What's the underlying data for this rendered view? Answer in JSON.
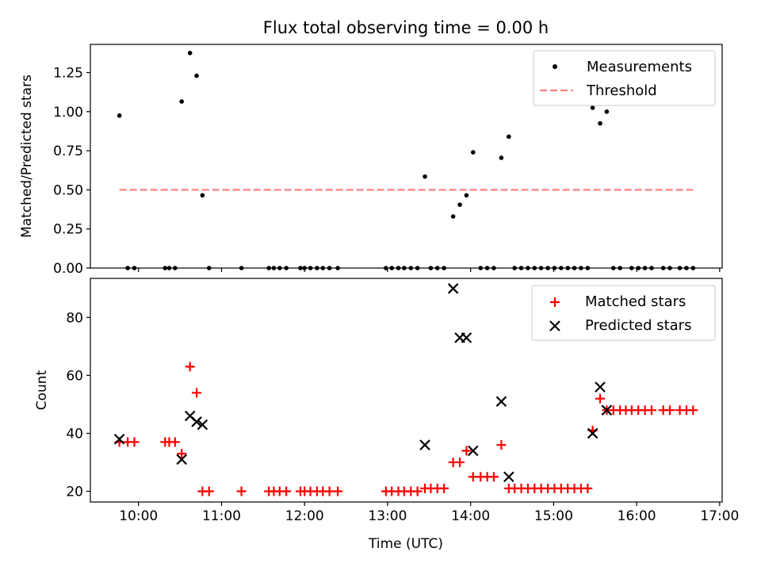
{
  "chart_data": [
    {
      "type": "scatter",
      "title": "Flux total observing time = 0.00 h",
      "xlabel": "",
      "ylabel": "Matched/Predicted stars",
      "xlim": [
        9.42,
        17.03
      ],
      "ylim": [
        0,
        1.43
      ],
      "yticks": [
        0.0,
        0.25,
        0.5,
        0.75,
        1.0,
        1.25
      ],
      "ytick_labels": [
        "0.00",
        "0.25",
        "0.50",
        "0.75",
        "1.00",
        "1.25"
      ],
      "xticks": [
        10,
        11,
        12,
        13,
        14,
        15,
        16,
        17
      ],
      "legend_position": "top-right",
      "series": [
        {
          "name": "Measurements",
          "marker": "dot",
          "color": "#000000",
          "points": [
            [
              9.77,
              0.975
            ],
            [
              10.52,
              1.065
            ],
            [
              10.62,
              1.375
            ],
            [
              10.7,
              1.23
            ],
            [
              10.77,
              0.465
            ],
            [
              13.45,
              0.585
            ],
            [
              13.79,
              0.33
            ],
            [
              13.87,
              0.405
            ],
            [
              13.95,
              0.465
            ],
            [
              14.03,
              0.74
            ],
            [
              14.37,
              0.705
            ],
            [
              14.46,
              0.84
            ],
            [
              15.47,
              1.025
            ],
            [
              15.56,
              0.925
            ],
            [
              15.64,
              1.0
            ],
            [
              9.87,
              0.0
            ],
            [
              9.95,
              0.0
            ],
            [
              10.32,
              0.0
            ],
            [
              10.37,
              0.0
            ],
            [
              10.44,
              0.0
            ],
            [
              10.85,
              0.0
            ],
            [
              11.24,
              0.0
            ],
            [
              11.57,
              0.0
            ],
            [
              11.63,
              0.0
            ],
            [
              11.7,
              0.0
            ],
            [
              11.78,
              0.0
            ],
            [
              11.95,
              0.0
            ],
            [
              12.0,
              0.0
            ],
            [
              12.07,
              0.0
            ],
            [
              12.15,
              0.0
            ],
            [
              12.22,
              0.0
            ],
            [
              12.3,
              0.0
            ],
            [
              12.4,
              0.0
            ],
            [
              12.98,
              0.0
            ],
            [
              13.05,
              0.0
            ],
            [
              13.13,
              0.0
            ],
            [
              13.2,
              0.0
            ],
            [
              13.28,
              0.0
            ],
            [
              13.36,
              0.0
            ],
            [
              13.52,
              0.0
            ],
            [
              13.6,
              0.0
            ],
            [
              13.68,
              0.0
            ],
            [
              14.12,
              0.0
            ],
            [
              14.2,
              0.0
            ],
            [
              14.28,
              0.0
            ],
            [
              14.53,
              0.0
            ],
            [
              14.61,
              0.0
            ],
            [
              14.69,
              0.0
            ],
            [
              14.77,
              0.0
            ],
            [
              14.85,
              0.0
            ],
            [
              14.93,
              0.0
            ],
            [
              15.01,
              0.0
            ],
            [
              15.09,
              0.0
            ],
            [
              15.17,
              0.0
            ],
            [
              15.25,
              0.0
            ],
            [
              15.33,
              0.0
            ],
            [
              15.41,
              0.0
            ],
            [
              15.72,
              0.0
            ],
            [
              15.8,
              0.0
            ],
            [
              15.94,
              0.0
            ],
            [
              16.02,
              0.0
            ],
            [
              16.1,
              0.0
            ],
            [
              16.18,
              0.0
            ],
            [
              16.32,
              0.0
            ],
            [
              16.4,
              0.0
            ],
            [
              16.52,
              0.0
            ],
            [
              16.6,
              0.0
            ],
            [
              16.68,
              0.0
            ]
          ]
        },
        {
          "name": "Threshold",
          "line_style": "dashed",
          "color": "#ff8080",
          "points": [
            [
              9.77,
              0.5
            ],
            [
              16.68,
              0.5
            ]
          ]
        }
      ]
    },
    {
      "type": "scatter",
      "title": "",
      "xlabel": "Time (UTC)",
      "ylabel": "Count",
      "xlim": [
        9.42,
        17.03
      ],
      "ylim": [
        16.3,
        93.5
      ],
      "yticks": [
        20,
        40,
        60,
        80
      ],
      "ytick_labels": [
        "20",
        "40",
        "60",
        "80"
      ],
      "xticks": [
        10,
        11,
        12,
        13,
        14,
        15,
        16,
        17
      ],
      "xtick_labels": [
        "10:00",
        "11:00",
        "12:00",
        "13:00",
        "14:00",
        "15:00",
        "16:00",
        "17:00"
      ],
      "legend_position": "top-right",
      "series": [
        {
          "name": "Matched stars",
          "marker": "plus",
          "color": "#ff0000",
          "points": [
            [
              9.77,
              37
            ],
            [
              9.87,
              37
            ],
            [
              9.95,
              37
            ],
            [
              10.32,
              37
            ],
            [
              10.37,
              37
            ],
            [
              10.44,
              37
            ],
            [
              10.52,
              33
            ],
            [
              10.62,
              63
            ],
            [
              10.7,
              54
            ],
            [
              10.77,
              20
            ],
            [
              10.85,
              20
            ],
            [
              11.24,
              20
            ],
            [
              11.57,
              20
            ],
            [
              11.63,
              20
            ],
            [
              11.7,
              20
            ],
            [
              11.78,
              20
            ],
            [
              11.95,
              20
            ],
            [
              12.0,
              20
            ],
            [
              12.07,
              20
            ],
            [
              12.15,
              20
            ],
            [
              12.22,
              20
            ],
            [
              12.3,
              20
            ],
            [
              12.4,
              20
            ],
            [
              12.98,
              20
            ],
            [
              13.05,
              20
            ],
            [
              13.13,
              20
            ],
            [
              13.2,
              20
            ],
            [
              13.28,
              20
            ],
            [
              13.36,
              20
            ],
            [
              13.45,
              21
            ],
            [
              13.52,
              21
            ],
            [
              13.6,
              21
            ],
            [
              13.68,
              21
            ],
            [
              13.79,
              30
            ],
            [
              13.87,
              30
            ],
            [
              13.95,
              34
            ],
            [
              14.03,
              25
            ],
            [
              14.12,
              25
            ],
            [
              14.2,
              25
            ],
            [
              14.28,
              25
            ],
            [
              14.37,
              36
            ],
            [
              14.46,
              21
            ],
            [
              14.53,
              21
            ],
            [
              14.61,
              21
            ],
            [
              14.69,
              21
            ],
            [
              14.77,
              21
            ],
            [
              14.85,
              21
            ],
            [
              14.93,
              21
            ],
            [
              15.01,
              21
            ],
            [
              15.09,
              21
            ],
            [
              15.17,
              21
            ],
            [
              15.25,
              21
            ],
            [
              15.33,
              21
            ],
            [
              15.41,
              21
            ],
            [
              15.47,
              41
            ],
            [
              15.56,
              52
            ],
            [
              15.64,
              48
            ],
            [
              15.72,
              48
            ],
            [
              15.8,
              48
            ],
            [
              15.87,
              48
            ],
            [
              15.94,
              48
            ],
            [
              16.02,
              48
            ],
            [
              16.1,
              48
            ],
            [
              16.18,
              48
            ],
            [
              16.32,
              48
            ],
            [
              16.4,
              48
            ],
            [
              16.52,
              48
            ],
            [
              16.6,
              48
            ],
            [
              16.68,
              48
            ]
          ]
        },
        {
          "name": "Predicted stars",
          "marker": "x",
          "color": "#000000",
          "points": [
            [
              9.77,
              38
            ],
            [
              10.52,
              31
            ],
            [
              10.62,
              46
            ],
            [
              10.7,
              44
            ],
            [
              10.77,
              43
            ],
            [
              13.45,
              36
            ],
            [
              13.79,
              90
            ],
            [
              13.87,
              73
            ],
            [
              13.95,
              73
            ],
            [
              14.03,
              34
            ],
            [
              14.37,
              51
            ],
            [
              14.46,
              25
            ],
            [
              15.47,
              40
            ],
            [
              15.56,
              56
            ],
            [
              15.64,
              48
            ]
          ]
        }
      ]
    }
  ]
}
